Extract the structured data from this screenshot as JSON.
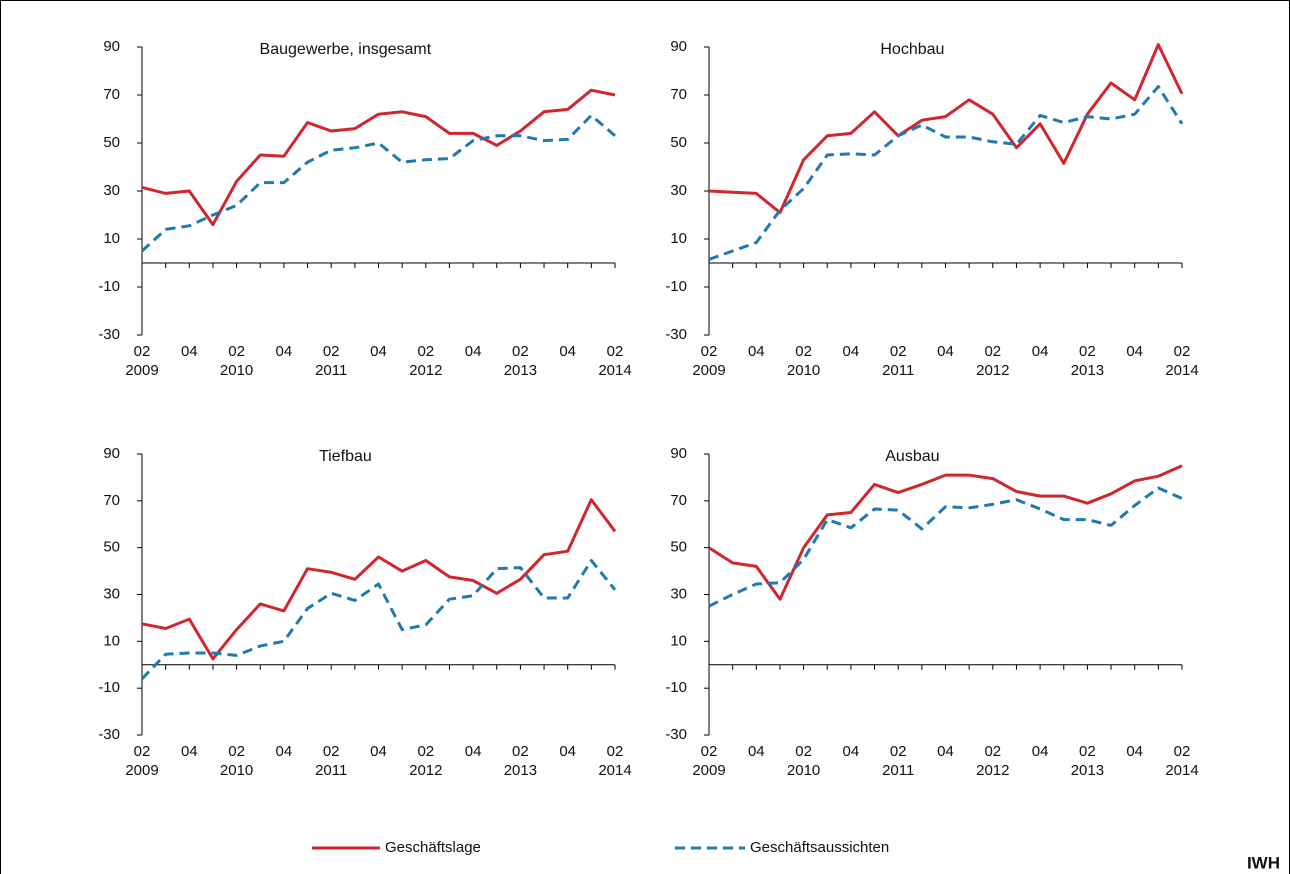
{
  "chart_data": [
    {
      "type": "line",
      "title": "Baugewerbe, insgesamt",
      "categories": [
        "02 2009",
        null,
        "04",
        null,
        "02 2010",
        null,
        "04",
        null,
        "02 2011",
        null,
        "04",
        null,
        "02 2012",
        null,
        "04",
        null,
        "02 2013",
        null,
        "04",
        null,
        "02 2014"
      ],
      "ylim": [
        -30,
        90
      ],
      "yticks": [
        -30,
        -10,
        10,
        30,
        50,
        70,
        90
      ],
      "series": [
        {
          "name": "Geschäftslage",
          "color": "#d0262e",
          "line_style": "solid",
          "values": [
            31.5,
            29,
            30,
            16,
            34,
            45,
            44.5,
            58.5,
            55,
            56,
            62,
            63,
            61,
            54,
            54,
            49,
            55,
            63,
            64,
            72,
            70
          ]
        },
        {
          "name": "Geschäftsaussichten",
          "color": "#1f7bac",
          "line_style": "dashed",
          "values": [
            5,
            14,
            15.5,
            20,
            24,
            33.5,
            33.5,
            42,
            47,
            48,
            50,
            42,
            43,
            43.5,
            51,
            53,
            53,
            51,
            51.5,
            61.5,
            53
          ]
        }
      ]
    },
    {
      "type": "line",
      "title": "Hochbau",
      "categories": [
        "02 2009",
        null,
        "04",
        null,
        "02 2010",
        null,
        "04",
        null,
        "02 2011",
        null,
        "04",
        null,
        "02 2012",
        null,
        "04",
        null,
        "02 2013",
        null,
        "04",
        null,
        "02 2014"
      ],
      "ylim": [
        -30,
        90
      ],
      "yticks": [
        -30,
        -10,
        10,
        30,
        50,
        70,
        90
      ],
      "series": [
        {
          "name": "Geschäftslage",
          "color": "#d0262e",
          "line_style": "solid",
          "values": [
            30,
            29.5,
            29,
            21,
            43,
            53,
            54,
            63,
            53,
            59.5,
            61,
            68,
            62,
            48,
            58,
            41.5,
            62,
            75,
            68,
            91,
            70.5
          ]
        },
        {
          "name": "Geschäftsaussichten",
          "color": "#1f7bac",
          "line_style": "dashed",
          "values": [
            1.5,
            5,
            8.5,
            22,
            31,
            45,
            45.5,
            45,
            53,
            57.5,
            52.5,
            52.5,
            50.5,
            49.5,
            61.5,
            58.5,
            61,
            60,
            62,
            73.5,
            58
          ]
        }
      ]
    },
    {
      "type": "line",
      "title": "Tiefbau",
      "categories": [
        "02 2009",
        null,
        "04",
        null,
        "02 2010",
        null,
        "04",
        null,
        "02 2011",
        null,
        "04",
        null,
        "02 2012",
        null,
        "04",
        null,
        "02 2013",
        null,
        "04",
        null,
        "02 2014"
      ],
      "ylim": [
        -30,
        90
      ],
      "yticks": [
        -30,
        -10,
        10,
        30,
        50,
        70,
        90
      ],
      "series": [
        {
          "name": "Geschäftslage",
          "color": "#d0262e",
          "line_style": "solid",
          "values": [
            17.5,
            15.5,
            19.5,
            2.5,
            15,
            26,
            23,
            41,
            39.5,
            36.5,
            46,
            40,
            44.5,
            37.5,
            36,
            30.5,
            36.5,
            47,
            48.5,
            70.5,
            57
          ]
        },
        {
          "name": "Geschäftsaussichten",
          "color": "#1f7bac",
          "line_style": "dashed",
          "values": [
            -6,
            4.5,
            5,
            5,
            4,
            8,
            10,
            24,
            30.5,
            27.5,
            34.5,
            15,
            17,
            28,
            29.5,
            41,
            41.5,
            28.5,
            28.5,
            44.5,
            32
          ]
        }
      ]
    },
    {
      "type": "line",
      "title": "Ausbau",
      "categories": [
        "02 2009",
        null,
        "04",
        null,
        "02 2010",
        null,
        "04",
        null,
        "02 2011",
        null,
        "04",
        null,
        "02 2012",
        null,
        "04",
        null,
        "02 2013",
        null,
        "04",
        null,
        "02 2014"
      ],
      "ylim": [
        -30,
        90
      ],
      "yticks": [
        -30,
        -10,
        10,
        30,
        50,
        70,
        90
      ],
      "series": [
        {
          "name": "Geschäftslage",
          "color": "#d0262e",
          "line_style": "solid",
          "values": [
            50,
            43.5,
            42,
            28,
            50,
            64,
            65,
            77,
            73.5,
            77,
            81,
            81,
            79.5,
            74,
            72,
            72,
            69,
            73,
            78.5,
            80.5,
            85
          ]
        },
        {
          "name": "Geschäftsaussichten",
          "color": "#1f7bac",
          "line_style": "dashed",
          "values": [
            25,
            30,
            34.5,
            35,
            45,
            62,
            58.5,
            66.5,
            66,
            58,
            67.5,
            67,
            68.5,
            70.5,
            66.5,
            62,
            62,
            59.5,
            68,
            75.5,
            71
          ]
        }
      ]
    }
  ],
  "source": "IWH"
}
